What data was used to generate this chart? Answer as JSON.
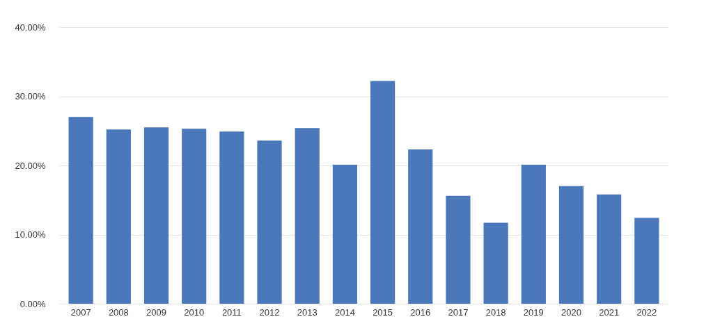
{
  "chart_data": {
    "type": "bar",
    "categories": [
      "2007",
      "2008",
      "2009",
      "2010",
      "2011",
      "2012",
      "2013",
      "2014",
      "2015",
      "2016",
      "2017",
      "2018",
      "2019",
      "2020",
      "2021",
      "2022"
    ],
    "values": [
      27.0,
      25.2,
      25.5,
      25.3,
      24.9,
      23.6,
      25.4,
      20.1,
      32.2,
      22.3,
      15.6,
      11.7,
      20.1,
      17.0,
      15.8,
      12.4
    ],
    "color": "#4a78bb",
    "ylim": [
      0,
      40
    ],
    "yticks": [
      {
        "value": 0,
        "label": "0.00%"
      },
      {
        "value": 10,
        "label": "10.00%"
      },
      {
        "value": 20,
        "label": "20.00%"
      },
      {
        "value": 30,
        "label": "30.00%"
      },
      {
        "value": 40,
        "label": "40.00%"
      }
    ],
    "grid": "y"
  }
}
